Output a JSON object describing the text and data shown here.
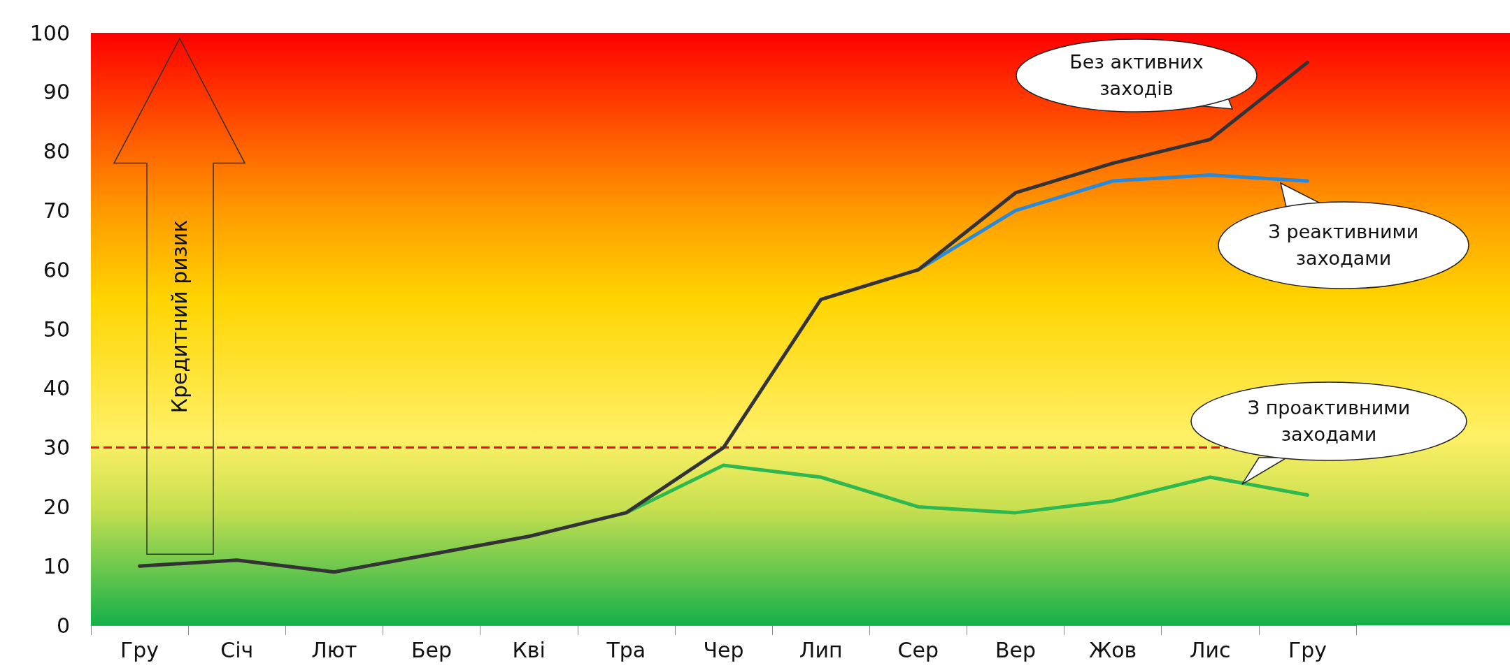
{
  "chart_data": {
    "type": "line",
    "ylabel": "Кредитний ризик",
    "categories": [
      "Гру",
      "Січ",
      "Лют",
      "Бер",
      "Кві",
      "Тра",
      "Чер",
      "Лип",
      "Сер",
      "Вер",
      "Жов",
      "Лис",
      "Гру"
    ],
    "series": [
      {
        "name": "Без активних заходів",
        "color": "#333333",
        "values": [
          10,
          11,
          9,
          12,
          15,
          19,
          30,
          55,
          60,
          73,
          78,
          82,
          95
        ]
      },
      {
        "name": "З реактивними заходами",
        "color": "#2a8ad8",
        "values": [
          null,
          null,
          null,
          null,
          null,
          null,
          null,
          null,
          60,
          70,
          75,
          76,
          75
        ]
      },
      {
        "name": "З проактивними заходами",
        "color": "#2fb84f",
        "values": [
          null,
          null,
          null,
          null,
          null,
          19,
          27,
          25,
          20,
          19,
          21,
          25,
          22
        ]
      }
    ],
    "ylim": [
      0,
      100
    ],
    "yticks": [
      0,
      10,
      20,
      30,
      40,
      50,
      60,
      70,
      80,
      90,
      100
    ],
    "ref_lines": [
      {
        "axis": "y",
        "value": 30,
        "color": "#ff0000",
        "line_style": "dashed"
      }
    ],
    "grid": false,
    "legend": false,
    "marker": "none",
    "line_style": "solid"
  }
}
